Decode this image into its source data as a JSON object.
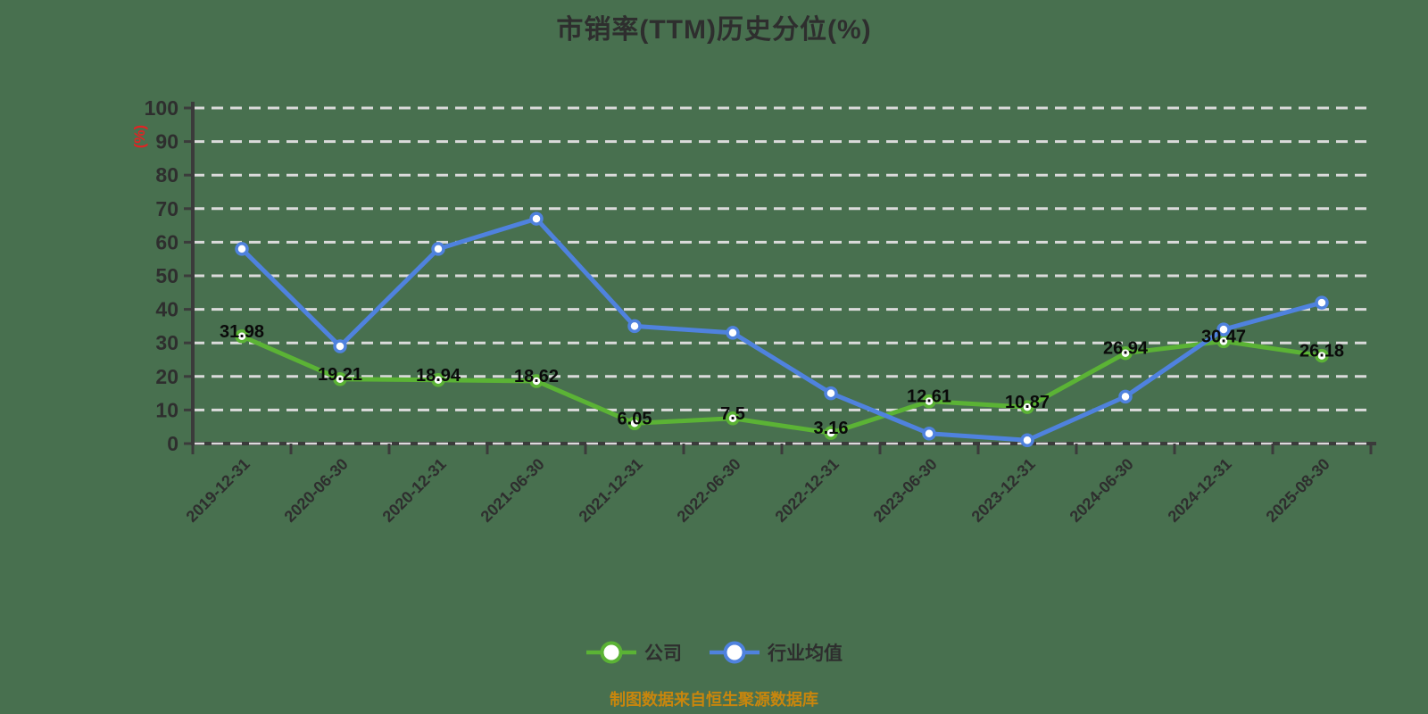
{
  "title": "市销率(TTM)历史分位(%)",
  "y_axis_unit": "(%)",
  "footer_note": "制图数据来自恒生聚源数据库",
  "colors": {
    "background": "#48704F",
    "company_line": "#5BB335",
    "industry_line": "#4F82DE",
    "gridline": "#DBDBDB",
    "axis": "#3B3B3B",
    "heading_text": "#2E2E2E",
    "value_label_text": "#0A0A0A",
    "unit_label": "#E02424",
    "footer_text": "#C8860D",
    "marker_fill": "#FFFFFF"
  },
  "legend": [
    {
      "label": "公司",
      "color": "#5BB335"
    },
    {
      "label": "行业均值",
      "color": "#4F82DE"
    }
  ],
  "chart_data": {
    "type": "line",
    "title": "市销率(TTM)历史分位(%)",
    "ylabel": "(%)",
    "xlabel": "",
    "ylim": [
      0,
      100
    ],
    "y_tick_interval": 10,
    "grid": true,
    "grid_style": "dashed",
    "legend_position": "bottom",
    "categories": [
      "2019-12-31",
      "2020-06-30",
      "2020-12-31",
      "2021-06-30",
      "2021-12-31",
      "2022-06-30",
      "2022-12-31",
      "2023-06-30",
      "2023-12-31",
      "2024-06-30",
      "2024-12-31",
      "2025-08-30"
    ],
    "series": [
      {
        "name": "公司",
        "color": "#5BB335",
        "labels_shown": true,
        "values": [
          31.98,
          19.21,
          18.94,
          18.62,
          6.05,
          7.5,
          3.16,
          12.61,
          10.87,
          26.94,
          30.47,
          26.18
        ]
      },
      {
        "name": "行业均值",
        "color": "#4F82DE",
        "labels_shown": false,
        "values": [
          58,
          29,
          58,
          67,
          35,
          33,
          15,
          3,
          1,
          14,
          34,
          42
        ]
      }
    ]
  }
}
